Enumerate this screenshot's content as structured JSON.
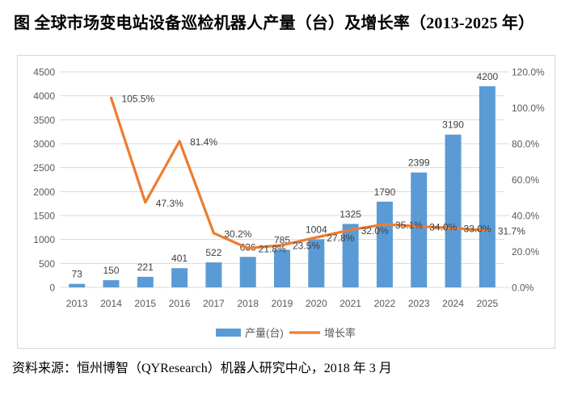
{
  "page": {
    "title": "图 全球市场变电站设备巡检机器人产量（台）及增长率（2013-2025 年）",
    "source_note": "资料来源：恒州博智（QYResearch）机器人研究中心，2018 年 3 月"
  },
  "chart_data": {
    "type": "bar",
    "combo": "bar+line dual-axis",
    "title": "",
    "categories": [
      "2013",
      "2014",
      "2015",
      "2016",
      "2017",
      "2018",
      "2019",
      "2020",
      "2021",
      "2022",
      "2023",
      "2024",
      "2025"
    ],
    "series": [
      {
        "name": "产量(台)",
        "type": "bar",
        "axis": "left",
        "color": "#5B9BD5",
        "values": [
          73,
          150,
          221,
          401,
          522,
          636,
          785,
          1004,
          1325,
          1790,
          2399,
          3190,
          4200
        ],
        "data_labels": [
          "73",
          "150",
          "221",
          "401",
          "522",
          "636",
          "785",
          "1004",
          "1325",
          "1790",
          "2399",
          "3190",
          "4200"
        ]
      },
      {
        "name": "增长率",
        "type": "line",
        "axis": "right",
        "color": "#ED7D31",
        "values": [
          null,
          105.5,
          47.3,
          81.4,
          30.2,
          21.8,
          23.5,
          27.8,
          32.0,
          35.1,
          34.0,
          33.0,
          31.7
        ],
        "data_labels": [
          null,
          "105.5%",
          "47.3%",
          "81.4%",
          "30.2%",
          "21.8%",
          "23.5%",
          "27.8%",
          "32.0%",
          "35.1%",
          "34.0%",
          "33.0%",
          "31.7%"
        ]
      }
    ],
    "left_axis": {
      "min": 0,
      "max": 4500,
      "step": 500,
      "tick_labels": [
        "0",
        "500",
        "1000",
        "1500",
        "2000",
        "2500",
        "3000",
        "3500",
        "4000",
        "4500"
      ]
    },
    "right_axis": {
      "min": 0,
      "max": 120,
      "step": 20,
      "tick_labels": [
        "0.0%",
        "20.0%",
        "40.0%",
        "60.0%",
        "80.0%",
        "100.0%",
        "120.0%"
      ]
    },
    "legend": {
      "position": "bottom",
      "entries": [
        {
          "label": "产量(台)",
          "marker": "rect",
          "color": "#5B9BD5"
        },
        {
          "label": "增长率",
          "marker": "line",
          "color": "#ED7D31"
        }
      ]
    },
    "grid": {
      "horizontal": true,
      "color": "#D9D9D9"
    },
    "text_colors": {
      "ticks": "#595959",
      "data_labels": "#404040",
      "legend": "#595959"
    }
  }
}
